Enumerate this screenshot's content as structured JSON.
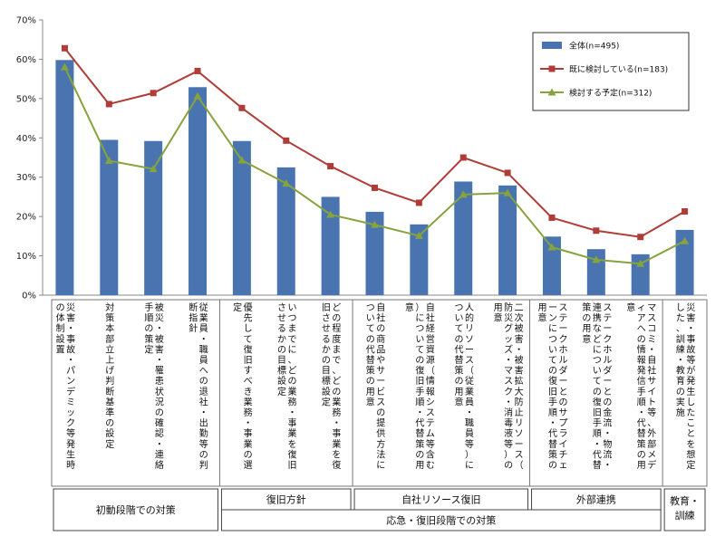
{
  "chart_data": {
    "type": "bar",
    "title": "",
    "ylim": [
      0,
      70
    ],
    "yticks": [
      "0%",
      "10%",
      "20%",
      "30%",
      "40%",
      "50%",
      "60%",
      "70%"
    ],
    "grid": false,
    "legend_position": "top-right",
    "categories": [
      "災害・事故・パンデミック等発生時の体制設置",
      "対策本部立上げ判断基準の設定",
      "被災・被害・罹患状況の確認・連絡手順の策定",
      "従業員・職員への退社・出勤等の判断指針",
      "優先して復旧すべき業務・事業の選定",
      "いつまでに、どの業務・事業を復旧させるかの目標設定",
      "どの程度まで、どの業務・事業を復旧させるかの目標設定",
      "自社の商品やサービスの提供方法についての代替策の用意",
      "自社経営資源（情報システム等含む）についての復旧手順・代替策の用意",
      "人的リソース（従業員・職員等）についての代替策の用意",
      "二次被害・被害拡大防止リソース（防災グッズ・マスク・消毒液等）の用意",
      "ステークホルダーとのサプライチェーンについての復旧手順・代替策の用意",
      "ステークホルダーとの金流・物流・連携などについての復旧手順・代替策の用意",
      "マスコミ・自社サイト等、外部メディアへの情報発信手順・代替策の用意",
      "災害・事故等が発生したことを想定した、訓練・教育の実施"
    ],
    "series": [
      {
        "name": "全体(n=495)",
        "type": "bar",
        "color": "#4a74b0",
        "values": [
          59.8,
          39.5,
          39.2,
          52.9,
          39.2,
          32.5,
          25.0,
          21.2,
          18.0,
          28.9,
          27.9,
          14.9,
          11.7,
          10.4,
          16.6
        ]
      },
      {
        "name": "既に検討している(n=183)",
        "type": "line",
        "color": "#b03c38",
        "values": [
          62.8,
          48.6,
          51.4,
          57.0,
          47.6,
          39.3,
          32.8,
          27.3,
          23.5,
          35.0,
          31.1,
          19.7,
          16.4,
          14.8,
          21.3
        ]
      },
      {
        "name": "検討する予定(n=312)",
        "type": "line",
        "color": "#86a33d",
        "values": [
          58.0,
          34.2,
          32.1,
          50.6,
          34.3,
          28.4,
          20.5,
          17.9,
          15.1,
          25.6,
          26.0,
          12.2,
          9.0,
          8.0,
          13.8
        ]
      }
    ],
    "groups_level1": [
      {
        "label": "初動段階での対策",
        "start": 0,
        "end": 3
      },
      {
        "label": "復旧方針",
        "start": 4,
        "end": 6
      },
      {
        "label": "自社リソース復旧",
        "start": 7,
        "end": 10
      },
      {
        "label": "外部連携",
        "start": 11,
        "end": 13
      },
      {
        "label": "教育・訓練",
        "start": 14,
        "end": 14
      }
    ],
    "groups_level2": [
      {
        "label": "応急・復旧段階での対策",
        "start": 4,
        "end": 13
      }
    ]
  }
}
